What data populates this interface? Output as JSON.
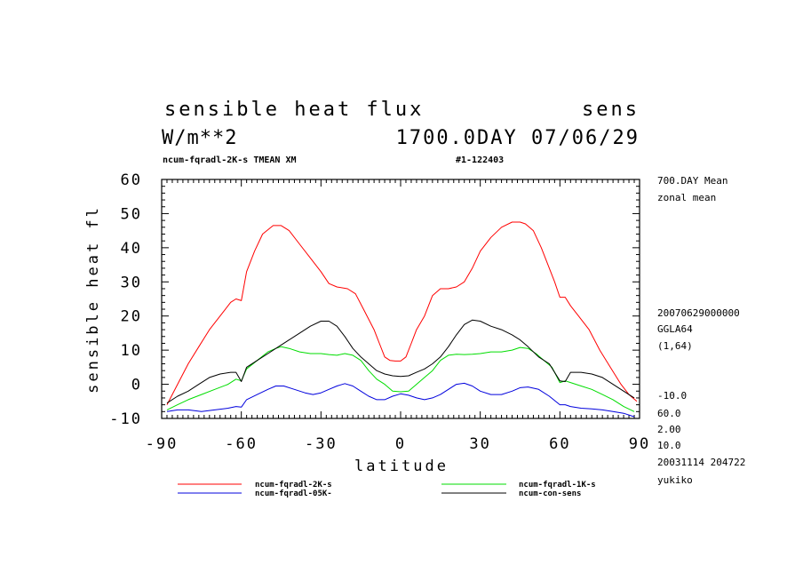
{
  "header": {
    "title": "sensible heat flux",
    "var_name": "sens",
    "units": "W/m**2",
    "date_line": "1700.0DAY 07/06/29",
    "run_line": "ncum-fqradl-2K-s TMEAN XM",
    "run_id": "#1-122403"
  },
  "side_info": {
    "mean": "700.DAY Mean",
    "zonal": "zonal mean",
    "timestamp": "20070629000000",
    "grid": "GGLA64",
    "index": "(1,64)",
    "v1": "-10.0",
    "v2": "60.0",
    "v3": "2.00",
    "v4": "10.0",
    "created": "20031114 204722",
    "user": "yukiko"
  },
  "chart_data": {
    "type": "line",
    "xlabel": "latitude",
    "ylabel": "sensible heat fl",
    "xlim": [
      -90,
      90
    ],
    "ylim": [
      -10,
      60
    ],
    "xticks": [
      -90,
      -60,
      -30,
      0,
      30,
      60,
      90
    ],
    "xtick_labels": [
      "-90",
      "-60",
      "-30",
      "0",
      "30",
      "60",
      "90"
    ],
    "yticks": [
      -10,
      0,
      10,
      20,
      30,
      40,
      50,
      60
    ],
    "ytick_labels": [
      "-10",
      "0",
      "10",
      "20",
      "30",
      "40",
      "50",
      "60"
    ],
    "grid": false,
    "legend_position": "bottom",
    "series": [
      {
        "name": "ncum-fqradl-2K-s",
        "color": "#ff0000",
        "x": [
          -88,
          -84,
          -80,
          -76,
          -72,
          -68,
          -64,
          -62,
          -60,
          -58,
          -55,
          -52,
          -48,
          -45,
          -42,
          -38,
          -34,
          -30,
          -27,
          -24,
          -20,
          -17,
          -14,
          -10,
          -8,
          -6,
          -4,
          -2,
          0,
          2,
          4,
          6,
          9,
          12,
          15,
          18,
          21,
          24,
          27,
          30,
          34,
          38,
          42,
          45,
          47,
          50,
          53,
          56,
          58,
          60,
          62,
          64,
          67,
          71,
          75,
          79,
          83,
          86,
          89
        ],
        "y": [
          -6,
          0,
          6,
          11,
          16,
          20,
          24,
          25,
          24.5,
          33,
          39,
          44,
          46.5,
          46.5,
          45,
          41,
          37,
          33,
          29.5,
          28.5,
          28,
          26.5,
          22,
          16,
          12,
          8,
          7,
          6.8,
          6.8,
          8,
          12,
          16,
          20,
          26,
          28,
          28,
          28.5,
          30,
          34,
          39,
          43,
          46,
          47.5,
          47.5,
          47,
          45,
          40,
          34,
          30,
          25.5,
          25.5,
          23,
          20,
          16,
          10,
          5,
          0,
          -3,
          -5
        ]
      },
      {
        "name": "ncum-fqradl-1K-s",
        "color": "#00dd00",
        "x": [
          -88,
          -84,
          -80,
          -75,
          -70,
          -65,
          -62,
          -60,
          -58,
          -54,
          -50,
          -47,
          -45,
          -42,
          -38,
          -34,
          -30,
          -27,
          -24,
          -21,
          -18,
          -15,
          -12,
          -9,
          -6,
          -3,
          0,
          3,
          6,
          9,
          12,
          15,
          18,
          21,
          24,
          27,
          30,
          34,
          38,
          42,
          45,
          48,
          51,
          54,
          57,
          60,
          62,
          64,
          68,
          72,
          76,
          80,
          84,
          88
        ],
        "y": [
          -7.5,
          -6,
          -4.5,
          -3,
          -1.5,
          0,
          1.5,
          1,
          4.5,
          7,
          9.5,
          10.5,
          11,
          10.5,
          9.5,
          9,
          9,
          8.7,
          8.5,
          9,
          8.5,
          7,
          4,
          1.5,
          0,
          -2,
          -2.2,
          -2,
          0,
          2,
          4,
          7,
          8.5,
          8.8,
          8.7,
          8.8,
          9,
          9.5,
          9.5,
          10,
          10.8,
          10.5,
          9,
          7,
          5,
          0.5,
          1,
          0.5,
          -0.5,
          -1.5,
          -3,
          -4.5,
          -6.5,
          -8
        ]
      },
      {
        "name": "ncum-fqradl-05K-",
        "color": "#0000dd",
        "x": [
          -88,
          -84,
          -80,
          -75,
          -70,
          -65,
          -62,
          -60,
          -58,
          -54,
          -50,
          -47,
          -44,
          -40,
          -36,
          -33,
          -30,
          -27,
          -24,
          -21,
          -18,
          -15,
          -12,
          -9,
          -6,
          -3,
          0,
          3,
          6,
          9,
          12,
          15,
          18,
          21,
          24,
          27,
          30,
          34,
          38,
          42,
          45,
          48,
          52,
          56,
          60,
          62,
          64,
          68,
          72,
          76,
          80,
          84,
          88
        ],
        "y": [
          -8,
          -7.5,
          -7.5,
          -8,
          -7.5,
          -7,
          -6.5,
          -6.7,
          -4.5,
          -3,
          -1.5,
          -0.5,
          -0.5,
          -1.5,
          -2.5,
          -3,
          -2.5,
          -1.5,
          -0.5,
          0.2,
          -0.5,
          -2,
          -3.5,
          -4.5,
          -4.5,
          -3.5,
          -2.8,
          -3.2,
          -4,
          -4.5,
          -4,
          -3,
          -1.5,
          0,
          0.3,
          -0.5,
          -2,
          -3,
          -3,
          -2,
          -1,
          -0.8,
          -1.5,
          -3.5,
          -6,
          -6,
          -6.5,
          -7,
          -7.2,
          -7.5,
          -8,
          -8.5,
          -9.5
        ]
      },
      {
        "name": "ncum-con-sens",
        "color": "#000000",
        "x": [
          -88,
          -84,
          -80,
          -76,
          -72,
          -68,
          -64,
          -62,
          -60,
          -58,
          -54,
          -50,
          -46,
          -42,
          -38,
          -34,
          -30,
          -27,
          -24,
          -21,
          -18,
          -15,
          -12,
          -9,
          -6,
          -3,
          0,
          3,
          6,
          9,
          12,
          15,
          18,
          21,
          24,
          27,
          30,
          34,
          38,
          42,
          45,
          48,
          52,
          56,
          60,
          62,
          64,
          68,
          72,
          76,
          80,
          84,
          88
        ],
        "y": [
          -5.5,
          -3.5,
          -2,
          0,
          2,
          3,
          3.5,
          3.5,
          0.8,
          5,
          7,
          9,
          11,
          13,
          15,
          17,
          18.5,
          18.5,
          17,
          14,
          10.5,
          8,
          6,
          4,
          3,
          2.5,
          2.3,
          2.5,
          3.5,
          4.5,
          6,
          8,
          11,
          14.5,
          17.5,
          18.8,
          18.5,
          17,
          16,
          14.5,
          13,
          11,
          8,
          6,
          1,
          0.8,
          3.5,
          3.5,
          3,
          2,
          0,
          -2,
          -4
        ]
      }
    ]
  }
}
